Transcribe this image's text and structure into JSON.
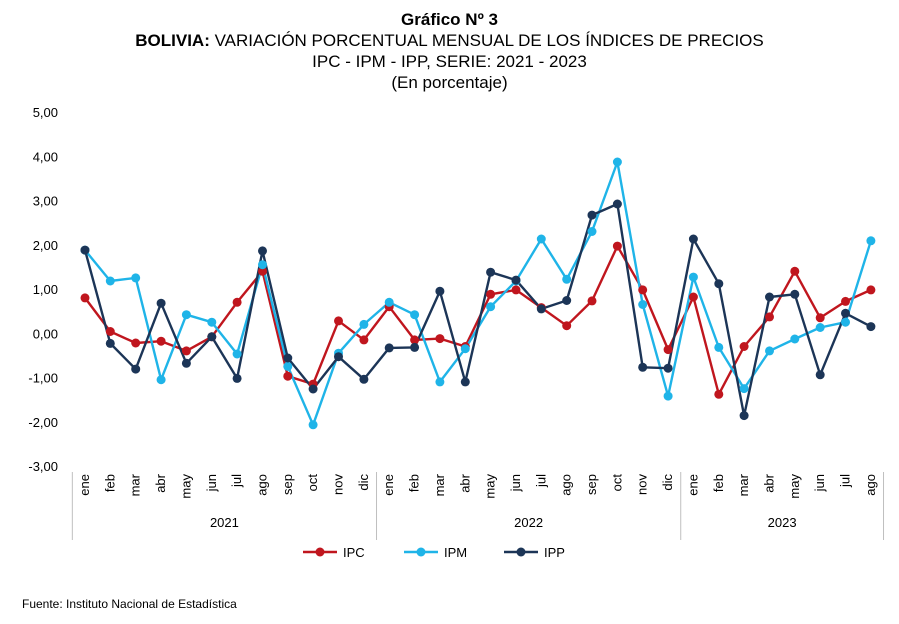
{
  "header": {
    "title": "Gráfico Nº 3",
    "subtitle_bold": "BOLIVIA:",
    "subtitle_rest": " VARIACIÓN PORCENTUAL MENSUAL DE LOS ÍNDICES DE PRECIOS",
    "subtitle2": "IPC - IPM - IPP, SERIE: 2021 - 2023",
    "unit": "(En porcentaje)"
  },
  "source": "Fuente: Instituto Nacional de Estadística",
  "chart_data": {
    "type": "line",
    "x": [
      "ene",
      "feb",
      "mar",
      "abr",
      "may",
      "jun",
      "jul",
      "ago",
      "sep",
      "oct",
      "nov",
      "dic",
      "ene",
      "feb",
      "mar",
      "abr",
      "may",
      "jun",
      "jul",
      "ago",
      "sep",
      "oct",
      "nov",
      "dic",
      "ene",
      "feb",
      "mar",
      "abr",
      "may",
      "jun",
      "jul",
      "ago"
    ],
    "year_groups": [
      {
        "label": "2021",
        "count": 12
      },
      {
        "label": "2022",
        "count": 12
      },
      {
        "label": "2023",
        "count": 8
      }
    ],
    "ylim": [
      -3,
      5
    ],
    "yticks": [
      "-3,00",
      "-2,00",
      "-1,00",
      "0,00",
      "1,00",
      "2,00",
      "3,00",
      "4,00",
      "5,00"
    ],
    "grid": false,
    "legend_position": "bottom",
    "series": [
      {
        "name": "IPC",
        "color": "#c0161e",
        "values": [
          0.8,
          0.04,
          -0.22,
          -0.18,
          -0.4,
          -0.08,
          0.7,
          1.4,
          -0.97,
          -1.15,
          0.28,
          -0.15,
          0.6,
          -0.15,
          -0.12,
          -0.3,
          0.88,
          0.98,
          0.58,
          0.17,
          0.73,
          1.97,
          0.98,
          -0.37,
          0.82,
          -1.38,
          -0.3,
          0.37,
          1.4,
          0.35,
          0.72,
          0.98
        ]
      },
      {
        "name": "IPM",
        "color": "#1fb4e8",
        "values": [
          1.88,
          1.18,
          1.25,
          -1.05,
          0.42,
          0.25,
          -0.47,
          1.55,
          -0.75,
          -2.07,
          -0.45,
          0.2,
          0.7,
          0.42,
          -1.1,
          -0.35,
          0.6,
          1.18,
          2.13,
          1.22,
          2.3,
          3.87,
          0.65,
          -1.42,
          1.27,
          -0.32,
          -1.25,
          -0.4,
          -0.13,
          0.13,
          0.25,
          2.09
        ]
      },
      {
        "name": "IPP",
        "color": "#1c3557",
        "values": [
          1.88,
          -0.23,
          -0.81,
          0.68,
          -0.68,
          -0.08,
          -1.02,
          1.86,
          -0.56,
          -1.26,
          -0.53,
          -1.04,
          -0.33,
          -0.32,
          0.95,
          -1.1,
          1.38,
          1.2,
          0.55,
          0.74,
          2.67,
          2.92,
          -0.77,
          -0.79,
          2.13,
          1.12,
          -1.86,
          0.82,
          0.88,
          -0.94,
          0.45,
          0.15
        ]
      }
    ]
  }
}
